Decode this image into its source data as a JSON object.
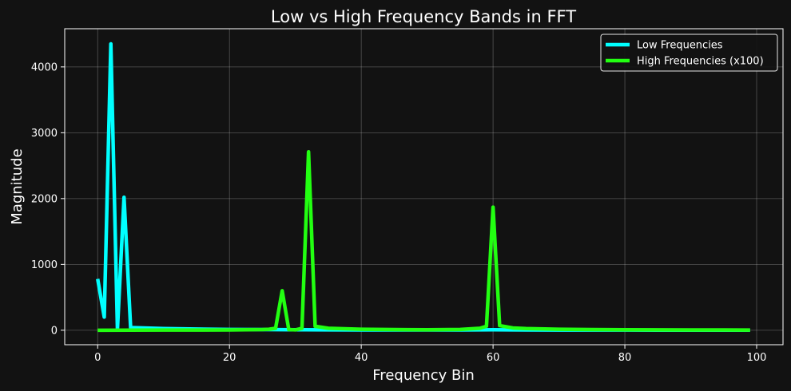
{
  "chart_data": {
    "type": "line",
    "title": "Low vs High Frequency Bands in FFT",
    "xlabel": "Frequency Bin",
    "ylabel": "Magnitude",
    "xlim": [
      -5,
      104
    ],
    "ylim": [
      -220,
      4580
    ],
    "xticks": [
      0,
      20,
      40,
      60,
      80,
      100
    ],
    "yticks": [
      0,
      1000,
      2000,
      3000,
      4000
    ],
    "grid": true,
    "legend_position": "top-right",
    "background": "#121212",
    "series": [
      {
        "name": "Low Frequencies",
        "color": "#00ffff",
        "points": [
          [
            0,
            780
          ],
          [
            1,
            200
          ],
          [
            2,
            4350
          ],
          [
            3,
            10
          ],
          [
            4,
            2020
          ],
          [
            5,
            40
          ],
          [
            10,
            25
          ],
          [
            15,
            18
          ],
          [
            20,
            12
          ],
          [
            25,
            10
          ],
          [
            30,
            8
          ],
          [
            35,
            6
          ],
          [
            40,
            5
          ],
          [
            45,
            5
          ],
          [
            50,
            4
          ],
          [
            55,
            4
          ],
          [
            60,
            8
          ],
          [
            65,
            4
          ],
          [
            70,
            3
          ],
          [
            75,
            3
          ],
          [
            80,
            3
          ],
          [
            85,
            2
          ],
          [
            90,
            2
          ],
          [
            95,
            2
          ],
          [
            99,
            2
          ]
        ]
      },
      {
        "name": "High Frequencies (x100)",
        "color": "#22ff11",
        "points": [
          [
            0,
            0
          ],
          [
            5,
            2
          ],
          [
            10,
            3
          ],
          [
            15,
            3
          ],
          [
            20,
            5
          ],
          [
            25,
            10
          ],
          [
            26,
            15
          ],
          [
            27,
            30
          ],
          [
            28,
            600
          ],
          [
            29,
            10
          ],
          [
            30,
            5
          ],
          [
            31,
            30
          ],
          [
            32,
            2710
          ],
          [
            33,
            60
          ],
          [
            35,
            30
          ],
          [
            40,
            15
          ],
          [
            45,
            10
          ],
          [
            50,
            8
          ],
          [
            55,
            12
          ],
          [
            58,
            30
          ],
          [
            59,
            60
          ],
          [
            60,
            1870
          ],
          [
            61,
            70
          ],
          [
            63,
            35
          ],
          [
            65,
            25
          ],
          [
            70,
            15
          ],
          [
            75,
            10
          ],
          [
            80,
            8
          ],
          [
            85,
            6
          ],
          [
            90,
            5
          ],
          [
            95,
            4
          ],
          [
            99,
            3
          ]
        ]
      }
    ]
  }
}
